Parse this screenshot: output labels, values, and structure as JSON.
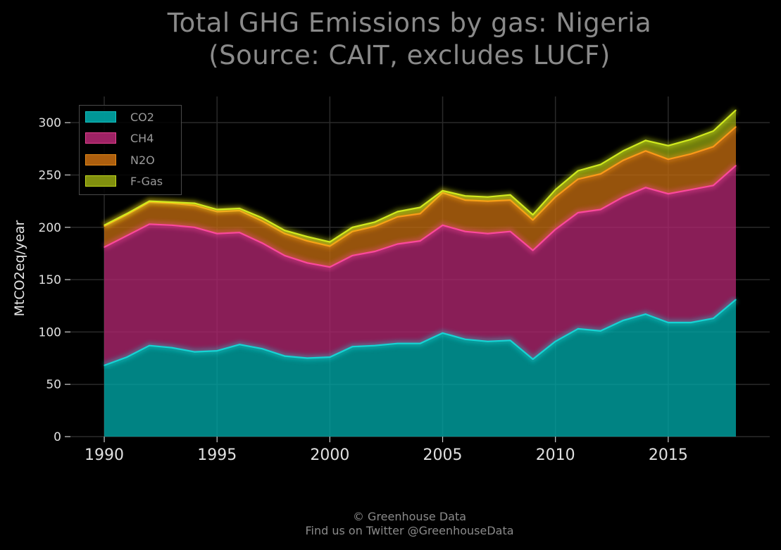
{
  "title_line1": "Total GHG Emissions by gas: Nigeria",
  "title_line2": "(Source: CAIT, excludes LUCF)",
  "footer_line1": "© Greenhouse Data",
  "footer_line2": "Find us on Twitter @GreenhouseData",
  "colors": {
    "CO2": "#00a8a8",
    "CH4": "#b0266f",
    "N2O": "#c06a10",
    "F-Gas": "#8fa010",
    "CO2_line": "#16d8d8",
    "CH4_line": "#ff4aa0",
    "N2O_line": "#ff9a1a",
    "F-Gas_line": "#d6f020"
  },
  "chart_data": {
    "type": "area",
    "stacked": true,
    "title": "Total GHG Emissions by gas: Nigeria\n(Source: CAIT, excludes LUCF)",
    "xlabel": "",
    "ylabel": "MtCO2eq/year",
    "xlim": [
      1988.5,
      2019.5
    ],
    "ylim": [
      0,
      325
    ],
    "xticks": [
      1990,
      1995,
      2000,
      2005,
      2010,
      2015
    ],
    "yticks": [
      0,
      50,
      100,
      150,
      200,
      250,
      300
    ],
    "grid": true,
    "legend_position": "top-left",
    "x": [
      1990,
      1991,
      1992,
      1993,
      1994,
      1995,
      1996,
      1997,
      1998,
      1999,
      2000,
      2001,
      2002,
      2003,
      2004,
      2005,
      2006,
      2007,
      2008,
      2009,
      2010,
      2011,
      2012,
      2013,
      2014,
      2015,
      2016,
      2017,
      2018
    ],
    "series": [
      {
        "name": "CO2",
        "values": [
          68,
          76,
          87,
          85,
          81,
          82,
          88,
          84,
          77,
          75,
          76,
          86,
          87,
          89,
          89,
          99,
          93,
          91,
          92,
          74,
          91,
          103,
          101,
          111,
          117,
          109,
          109,
          113,
          131
        ]
      },
      {
        "name": "CH4",
        "values": [
          113,
          116,
          116,
          117,
          119,
          112,
          107,
          101,
          96,
          91,
          86,
          87,
          90,
          95,
          98,
          103,
          103,
          103,
          104,
          104,
          107,
          111,
          116,
          118,
          121,
          123,
          127,
          127,
          128
        ]
      },
      {
        "name": "N2O",
        "values": [
          20,
          20,
          21,
          21,
          21,
          21,
          21,
          21,
          21,
          21,
          20,
          23,
          24,
          26,
          26,
          31,
          30,
          31,
          30,
          29,
          31,
          32,
          34,
          35,
          35,
          33,
          34,
          37,
          37
        ]
      },
      {
        "name": "F-Gas",
        "values": [
          1,
          1,
          1,
          1,
          2,
          2,
          2,
          3,
          3,
          4,
          4,
          4,
          4,
          5,
          6,
          2,
          4,
          4,
          5,
          5,
          7,
          8,
          9,
          9,
          10,
          13,
          14,
          15,
          16
        ]
      }
    ]
  }
}
